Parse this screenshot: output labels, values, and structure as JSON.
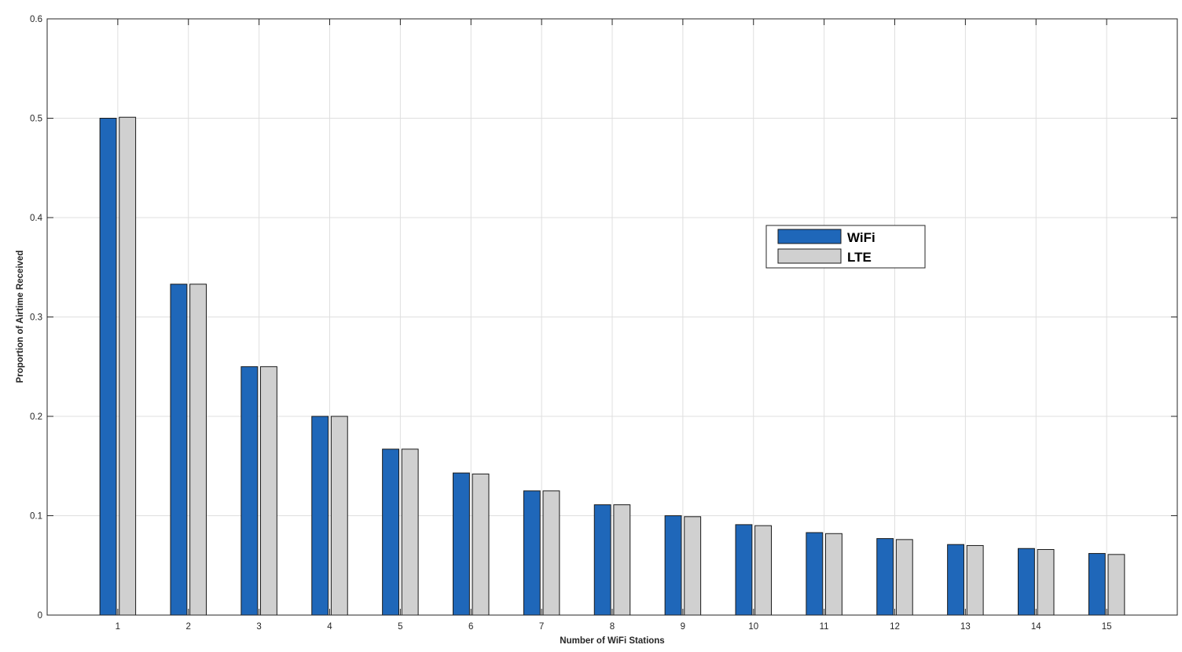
{
  "chart_data": {
    "type": "bar",
    "title": "",
    "xlabel": "Number of WiFi Stations",
    "ylabel": "Proportion of Airtime Received",
    "categories": [
      "1",
      "2",
      "3",
      "4",
      "5",
      "6",
      "7",
      "8",
      "9",
      "10",
      "11",
      "12",
      "13",
      "14",
      "15"
    ],
    "series": [
      {
        "name": "WiFi",
        "color": "#1f67b9",
        "values": [
          0.5,
          0.333,
          0.25,
          0.2,
          0.167,
          0.143,
          0.125,
          0.111,
          0.1,
          0.091,
          0.083,
          0.077,
          0.071,
          0.067,
          0.062
        ]
      },
      {
        "name": "LTE",
        "color": "#d0d0d0",
        "values": [
          0.501,
          0.333,
          0.25,
          0.2,
          0.167,
          0.142,
          0.125,
          0.111,
          0.099,
          0.09,
          0.082,
          0.076,
          0.07,
          0.066,
          0.061
        ]
      }
    ],
    "ylim": [
      0,
      0.6
    ],
    "xlim": [
      0,
      16
    ],
    "yticks": [
      "0",
      "0.1",
      "0.2",
      "0.3",
      "0.4",
      "0.5",
      "0.6"
    ],
    "grid": true,
    "legend_position": "upper-right-center"
  }
}
